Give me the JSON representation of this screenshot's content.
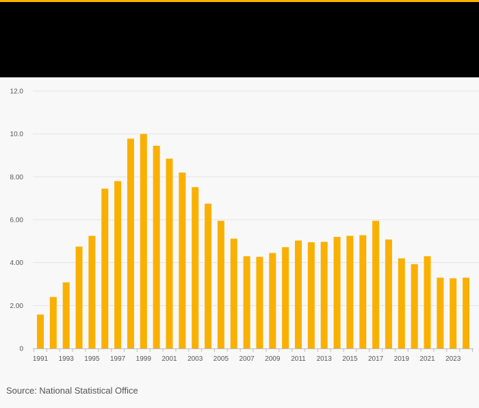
{
  "colors": {
    "accent": "#f9b000",
    "bar": "#f9b000",
    "header_bg": "#000000",
    "background": "#f8f8f8",
    "grid": "#e4e4e4",
    "axis": "#bbbbbb",
    "text": "#555555"
  },
  "chart_data": {
    "type": "bar",
    "title": "",
    "xlabel": "",
    "ylabel": "",
    "categories": [
      "1991",
      "1992",
      "1993",
      "1994",
      "1995",
      "1996",
      "1997",
      "1998",
      "1999",
      "2000",
      "2001",
      "2002",
      "2003",
      "2004",
      "2005",
      "2006",
      "2007",
      "2008",
      "2009",
      "2010",
      "2011",
      "2012",
      "2013",
      "2014",
      "2015",
      "2016",
      "2017",
      "2018",
      "2019",
      "2020",
      "2021",
      "2022",
      "2023",
      "2024"
    ],
    "x_tick_labels": [
      "1991",
      "1993",
      "1995",
      "1997",
      "1999",
      "2001",
      "2003",
      "2005",
      "2007",
      "2009",
      "2011",
      "2013",
      "2015",
      "2017",
      "2019",
      "2021",
      "2023"
    ],
    "values": [
      1.58,
      2.4,
      3.08,
      4.75,
      5.25,
      7.45,
      7.8,
      9.78,
      10.0,
      9.45,
      8.85,
      8.2,
      7.52,
      6.75,
      5.95,
      5.12,
      4.3,
      4.27,
      4.45,
      4.72,
      5.03,
      4.95,
      4.97,
      5.2,
      5.25,
      5.28,
      5.95,
      5.08,
      4.2,
      3.93,
      4.3,
      3.3,
      3.27,
      3.3
    ],
    "ylim": [
      0,
      12
    ],
    "y_ticks": [
      0,
      2,
      4,
      6,
      8,
      10,
      12
    ],
    "y_tick_labels": [
      "0",
      "2.00",
      "4.00",
      "6.00",
      "8.00",
      "10.0",
      "12.0"
    ],
    "grid": true
  },
  "source": "Source: National Statistical Office"
}
